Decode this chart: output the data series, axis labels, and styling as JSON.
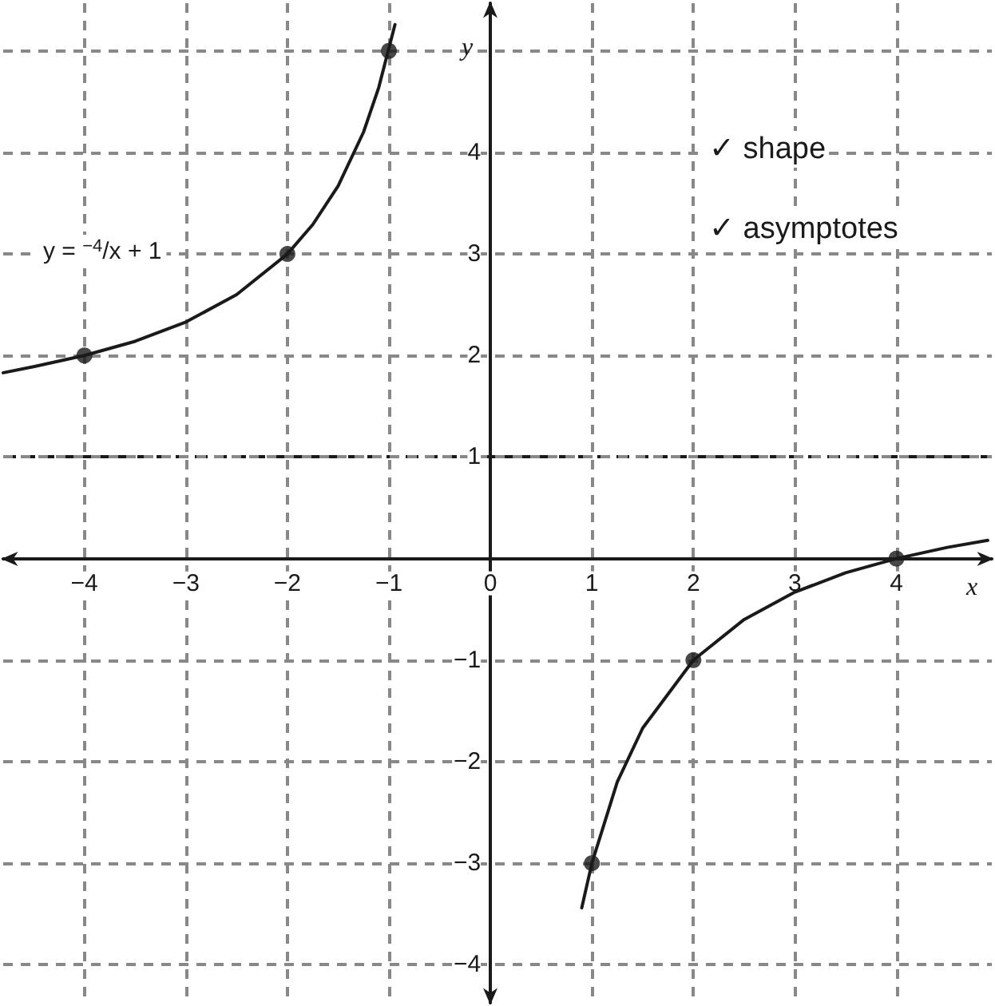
{
  "chart_data": {
    "type": "line",
    "xlabel": "x",
    "ylabel": "y",
    "xlim": [
      -4.8,
      4.94
    ],
    "ylim": [
      -4.375,
      5.47
    ],
    "xticks": [
      {
        "value": -4,
        "label": "−4"
      },
      {
        "value": -3,
        "label": "−3"
      },
      {
        "value": -2,
        "label": "−2"
      },
      {
        "value": -1,
        "label": "−1"
      },
      0,
      1,
      2,
      3,
      4
    ],
    "yticks": [
      {
        "value": -4,
        "label": "−4"
      },
      {
        "value": -3,
        "label": "−3"
      },
      {
        "value": -2,
        "label": "−2"
      },
      {
        "value": -1,
        "label": "−1"
      },
      1,
      2,
      3,
      4,
      {
        "value": 5,
        "label": null
      }
    ],
    "grid": true,
    "line_style": "solid",
    "marker": "none",
    "series": [
      {
        "color": "#1a1a1a",
        "x": [
          -4.8,
          -4.5,
          -4,
          -3.5,
          -3,
          -2.5,
          -2,
          -1.75,
          -1.5,
          -1.25,
          -1.1,
          -0.94
        ],
        "values": [
          1.83,
          1.89,
          2,
          2.14,
          2.33,
          2.6,
          3,
          3.29,
          3.67,
          4.2,
          4.64,
          5.26
        ]
      },
      {
        "color": "#1a1a1a",
        "x": [
          0.9,
          1,
          1.25,
          1.5,
          2,
          2.5,
          3,
          3.5,
          4,
          4.5,
          4.9
        ],
        "values": [
          -3.44,
          -3,
          -2.2,
          -1.67,
          -1,
          -0.6,
          -0.33,
          -0.14,
          0,
          0.11,
          0.18
        ]
      },
      {
        "type": "scatter",
        "marker": "circle",
        "color": "#1a1a1a",
        "x": [
          -4,
          -2,
          -1,
          1,
          2,
          4
        ],
        "values": [
          2,
          3,
          5,
          -3,
          -1,
          0
        ]
      }
    ],
    "ref_lines": [
      {
        "axis": "y",
        "value": 1,
        "color": "#1a1a1a",
        "line_style": "dashed"
      }
    ],
    "annotations": [
      "y = $^{−4}$/x + 1",
      "✓ shape",
      "✓ asymptotes"
    ]
  }
}
